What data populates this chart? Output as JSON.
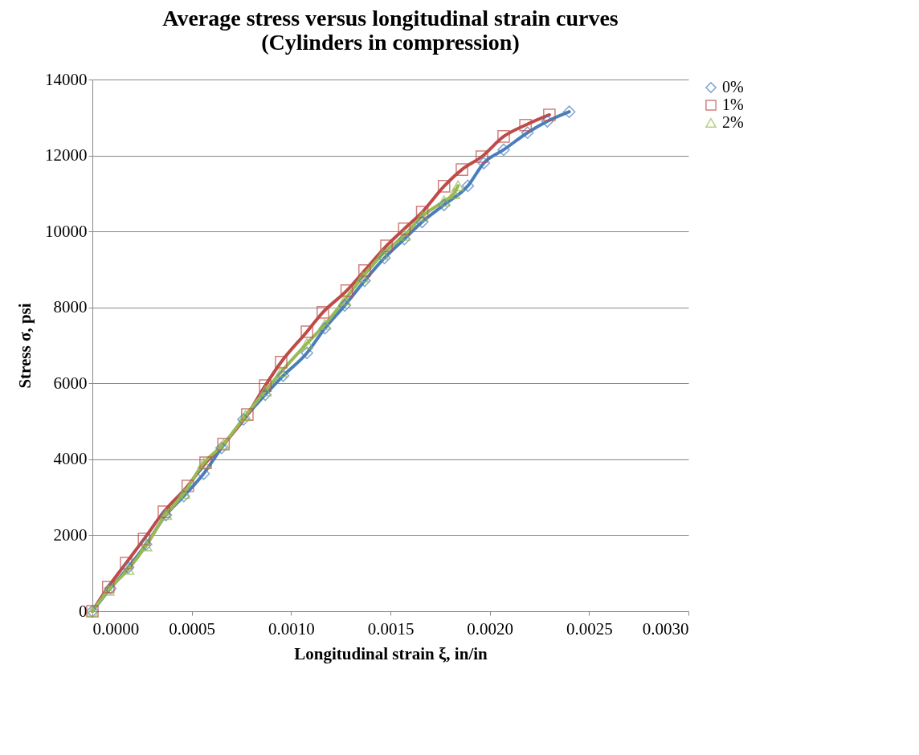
{
  "chart_data": {
    "type": "line",
    "title": "Average stress versus longitudinal strain curves\n(Cylinders in compression)",
    "xlabel": "Longitudinal strain ξ, in/in",
    "ylabel": "Stress σ, psi",
    "xlim": [
      0,
      0.003
    ],
    "xticks": [
      {
        "value": 0,
        "label": "0.0000"
      },
      {
        "value": 0.0005,
        "label": "0.0005"
      },
      {
        "value": 0.001,
        "label": "0.0010"
      },
      {
        "value": 0.0015,
        "label": "0.0015"
      },
      {
        "value": 0.002,
        "label": "0.0020"
      },
      {
        "value": 0.0025,
        "label": "0.0025"
      },
      {
        "value": 0.003,
        "label": "0.0030"
      }
    ],
    "ylim": [
      0,
      14000
    ],
    "yticks": [
      0,
      2000,
      4000,
      6000,
      8000,
      10000,
      12000,
      14000
    ],
    "grid": "y",
    "legend": "right",
    "line_style": "solid",
    "series": [
      {
        "name": "0%",
        "color": "#4a7ebb",
        "marker": "diamond",
        "x": [
          0,
          9e-05,
          0.00018,
          0.00027,
          0.00037,
          0.00046,
          0.00056,
          0.00065,
          0.00076,
          0.00087,
          0.00096,
          0.00108,
          0.00117,
          0.00127,
          0.00137,
          0.00147,
          0.00157,
          0.00166,
          0.00177,
          0.00189,
          0.00197,
          0.00207,
          0.00219,
          0.00229,
          0.0024
        ],
        "values": [
          0,
          600,
          1150,
          1760,
          2530,
          3030,
          3620,
          4300,
          5050,
          5700,
          6200,
          6800,
          7450,
          8050,
          8700,
          9300,
          9800,
          10250,
          10700,
          11200,
          11800,
          12150,
          12600,
          12900,
          13150
        ]
      },
      {
        "name": "1%",
        "color": "#be4b48",
        "marker": "square",
        "x": [
          0,
          8e-05,
          0.00017,
          0.00026,
          0.00036,
          0.00048,
          0.00057,
          0.00066,
          0.00078,
          0.00087,
          0.00095,
          0.00108,
          0.00116,
          0.00128,
          0.00137,
          0.00148,
          0.00157,
          0.00166,
          0.00177,
          0.00186,
          0.00196,
          0.00207,
          0.00218,
          0.0023
        ],
        "values": [
          0,
          640,
          1270,
          1900,
          2620,
          3300,
          3910,
          4400,
          5180,
          5940,
          6560,
          7360,
          7870,
          8440,
          8970,
          9620,
          10070,
          10510,
          11190,
          11630,
          11970,
          12500,
          12800,
          13070
        ]
      },
      {
        "name": "2%",
        "color": "#98b954",
        "marker": "triangle",
        "x": [
          0,
          8e-05,
          0.00018,
          0.00027,
          0.00037,
          0.00046,
          0.00056,
          0.00066,
          0.00077,
          0.00087,
          0.00095,
          0.00108,
          0.00117,
          0.00127,
          0.00136,
          0.00146,
          0.00157,
          0.00166,
          0.00177,
          0.00182,
          0.00184
        ],
        "values": [
          0,
          550,
          1100,
          1720,
          2550,
          3100,
          3900,
          4400,
          5150,
          5800,
          6300,
          7050,
          7550,
          8200,
          8800,
          9400,
          9900,
          10400,
          10800,
          11000,
          11200
        ]
      }
    ]
  }
}
